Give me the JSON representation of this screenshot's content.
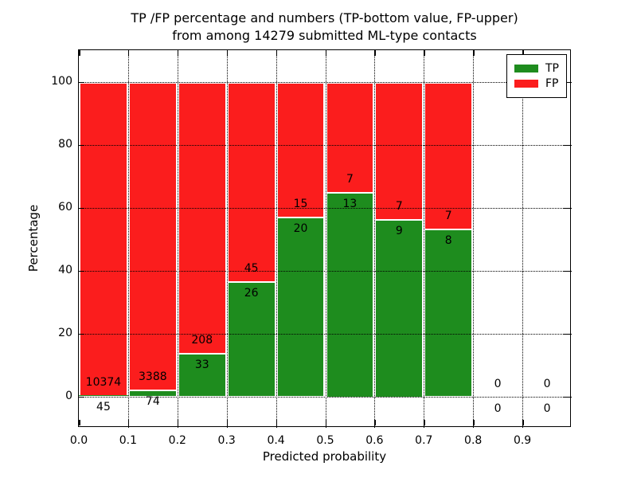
{
  "title": {
    "line1": "TP /FP percentage and numbers (TP-bottom value, FP-upper)",
    "line2": "from among 14279 submitted ML-type contacts"
  },
  "axes": {
    "xlabel": "Predicted probability",
    "ylabel": "Percentage",
    "xlim": [
      0,
      1.0
    ],
    "ylim": [
      -10,
      110
    ],
    "x_ticks": [
      {
        "value": 0.0,
        "label": "0.0"
      },
      {
        "value": 0.1,
        "label": "0.1"
      },
      {
        "value": 0.2,
        "label": "0.2"
      },
      {
        "value": 0.3,
        "label": "0.3"
      },
      {
        "value": 0.4,
        "label": "0.4"
      },
      {
        "value": 0.5,
        "label": "0.5"
      },
      {
        "value": 0.6,
        "label": "0.6"
      },
      {
        "value": 0.7,
        "label": "0.7"
      },
      {
        "value": 0.8,
        "label": "0.8"
      },
      {
        "value": 0.9,
        "label": "0.9"
      }
    ],
    "y_ticks": [
      {
        "value": 0,
        "label": "0"
      },
      {
        "value": 20,
        "label": "20"
      },
      {
        "value": 40,
        "label": "40"
      },
      {
        "value": 60,
        "label": "60"
      },
      {
        "value": 80,
        "label": "80"
      },
      {
        "value": 100,
        "label": "100"
      }
    ],
    "grid": true
  },
  "legend": {
    "position": "upper right",
    "items": [
      {
        "label": "TP",
        "color": "#1e8c1e"
      },
      {
        "label": "FP",
        "color": "#fb1d1d"
      }
    ]
  },
  "colors": {
    "tp": "#1e8c1e",
    "fp": "#fb1d1d",
    "bar_edge": "#ffffff",
    "grid": "#000000"
  },
  "chart_data": {
    "type": "bar",
    "variant": "stacked-percentage",
    "title": "TP /FP percentage and numbers (TP-bottom value, FP-upper) from among 14279 submitted ML-type contacts",
    "xlabel": "Predicted probability",
    "ylabel": "Percentage",
    "total_contacts": 14279,
    "bin_width": 0.1,
    "series_order": [
      "TP (bottom, green)",
      "FP (upper, red)"
    ],
    "bins": [
      {
        "x0": 0.0,
        "x1": 0.1,
        "tp": 45,
        "fp": 10374,
        "tp_pct": 0.4,
        "fp_pct": 99.6
      },
      {
        "x0": 0.1,
        "x1": 0.2,
        "tp": 74,
        "fp": 3388,
        "tp_pct": 2.1,
        "fp_pct": 97.9
      },
      {
        "x0": 0.2,
        "x1": 0.3,
        "tp": 33,
        "fp": 208,
        "tp_pct": 13.7,
        "fp_pct": 86.3
      },
      {
        "x0": 0.3,
        "x1": 0.4,
        "tp": 26,
        "fp": 45,
        "tp_pct": 36.6,
        "fp_pct": 63.4
      },
      {
        "x0": 0.4,
        "x1": 0.5,
        "tp": 20,
        "fp": 15,
        "tp_pct": 57.1,
        "fp_pct": 42.9
      },
      {
        "x0": 0.5,
        "x1": 0.6,
        "tp": 13,
        "fp": 7,
        "tp_pct": 65.0,
        "fp_pct": 35.0
      },
      {
        "x0": 0.6,
        "x1": 0.7,
        "tp": 9,
        "fp": 7,
        "tp_pct": 56.3,
        "fp_pct": 43.7
      },
      {
        "x0": 0.7,
        "x1": 0.8,
        "tp": 8,
        "fp": 7,
        "tp_pct": 53.3,
        "fp_pct": 46.7
      },
      {
        "x0": 0.8,
        "x1": 0.9,
        "tp": 0,
        "fp": 0,
        "tp_pct": 0,
        "fp_pct": 0
      },
      {
        "x0": 0.9,
        "x1": 1.0,
        "tp": 0,
        "fp": 0,
        "tp_pct": 0,
        "fp_pct": 0
      }
    ]
  }
}
